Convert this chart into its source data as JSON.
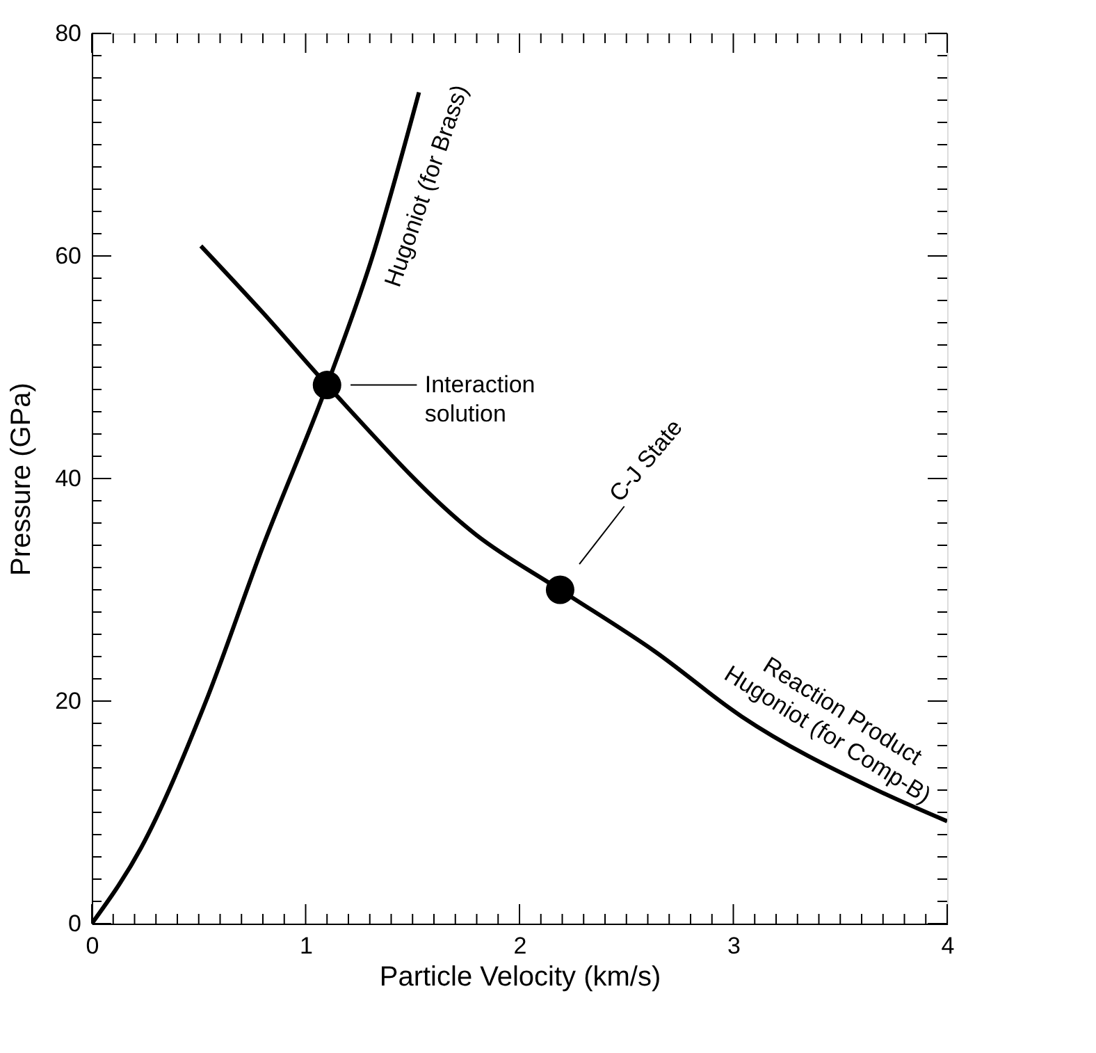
{
  "chart_data": {
    "type": "line",
    "xlabel": "Particle Velocity (km/s)",
    "ylabel": "Pressure (GPa)",
    "xlim": [
      0,
      4
    ],
    "ylim": [
      0,
      80
    ],
    "xticks": [
      0,
      {
        "value": 0.1,
        "label": null
      },
      {
        "value": 0.2,
        "label": null
      },
      {
        "value": 0.3,
        "label": null
      },
      {
        "value": 0.4,
        "label": null
      },
      {
        "value": 0.5,
        "label": null
      },
      {
        "value": 0.6,
        "label": null
      },
      {
        "value": 0.7,
        "label": null
      },
      {
        "value": 0.8,
        "label": null
      },
      {
        "value": 0.9,
        "label": null
      },
      1,
      {
        "value": 1.1,
        "label": null
      },
      {
        "value": 1.2,
        "label": null
      },
      {
        "value": 1.3,
        "label": null
      },
      {
        "value": 1.4,
        "label": null
      },
      {
        "value": 1.5,
        "label": null
      },
      {
        "value": 1.6,
        "label": null
      },
      {
        "value": 1.7,
        "label": null
      },
      {
        "value": 1.8,
        "label": null
      },
      {
        "value": 1.9,
        "label": null
      },
      2,
      {
        "value": 2.1,
        "label": null
      },
      {
        "value": 2.2,
        "label": null
      },
      {
        "value": 2.3,
        "label": null
      },
      {
        "value": 2.4,
        "label": null
      },
      {
        "value": 2.5,
        "label": null
      },
      {
        "value": 2.6,
        "label": null
      },
      {
        "value": 2.7,
        "label": null
      },
      {
        "value": 2.8,
        "label": null
      },
      {
        "value": 2.9,
        "label": null
      },
      3,
      {
        "value": 3.1,
        "label": null
      },
      {
        "value": 3.2,
        "label": null
      },
      {
        "value": 3.3,
        "label": null
      },
      {
        "value": 3.4,
        "label": null
      },
      {
        "value": 3.5,
        "label": null
      },
      {
        "value": 3.6,
        "label": null
      },
      {
        "value": 3.7,
        "label": null
      },
      {
        "value": 3.8,
        "label": null
      },
      {
        "value": 3.9,
        "label": null
      },
      4
    ],
    "yticks": [
      0,
      {
        "value": 2,
        "label": null
      },
      {
        "value": 4,
        "label": null
      },
      {
        "value": 6,
        "label": null
      },
      {
        "value": 8,
        "label": null
      },
      {
        "value": 10,
        "label": null
      },
      {
        "value": 12,
        "label": null
      },
      {
        "value": 14,
        "label": null
      },
      {
        "value": 16,
        "label": null
      },
      {
        "value": 18,
        "label": null
      },
      20,
      {
        "value": 22,
        "label": null
      },
      {
        "value": 24,
        "label": null
      },
      {
        "value": 26,
        "label": null
      },
      {
        "value": 28,
        "label": null
      },
      {
        "value": 30,
        "label": null
      },
      {
        "value": 32,
        "label": null
      },
      {
        "value": 34,
        "label": null
      },
      {
        "value": 36,
        "label": null
      },
      {
        "value": 38,
        "label": null
      },
      40,
      {
        "value": 42,
        "label": null
      },
      {
        "value": 44,
        "label": null
      },
      {
        "value": 46,
        "label": null
      },
      {
        "value": 48,
        "label": null
      },
      {
        "value": 50,
        "label": null
      },
      {
        "value": 52,
        "label": null
      },
      {
        "value": 54,
        "label": null
      },
      {
        "value": 56,
        "label": null
      },
      {
        "value": 58,
        "label": null
      },
      60,
      {
        "value": 62,
        "label": null
      },
      {
        "value": 64,
        "label": null
      },
      {
        "value": 66,
        "label": null
      },
      {
        "value": 68,
        "label": null
      },
      {
        "value": 70,
        "label": null
      },
      {
        "value": 72,
        "label": null
      },
      {
        "value": 74,
        "label": null
      },
      {
        "value": 76,
        "label": null
      },
      {
        "value": 78,
        "label": null
      },
      80
    ],
    "grid": false,
    "line_style": "solid",
    "series": [
      {
        "name": "Hugoniot (for Brass)",
        "color": "#000000",
        "x": [
          0,
          0.23,
          0.53,
          0.8,
          1.1,
          1.31,
          1.53
        ],
        "values": [
          0,
          6.8,
          19.8,
          33.9,
          48.4,
          59.8,
          74.7
        ]
      },
      {
        "name": "Reaction Product Hugoniot (for Comp-B)",
        "color": "#000000",
        "x": [
          0.51,
          0.8,
          1.1,
          1.8,
          2.19,
          2.63,
          3.04,
          3.66,
          4.0
        ],
        "values": [
          60.9,
          54.9,
          48.4,
          34.9,
          30.0,
          24.5,
          18.6,
          12.1,
          9.2
        ]
      },
      {
        "type": "scatter",
        "marker": "circle",
        "color": "#000000",
        "x": [
          1.1,
          2.19
        ],
        "values": [
          48.4,
          30.0
        ]
      }
    ],
    "annotations": [
      "Interaction solution",
      "C-J State"
    ]
  }
}
